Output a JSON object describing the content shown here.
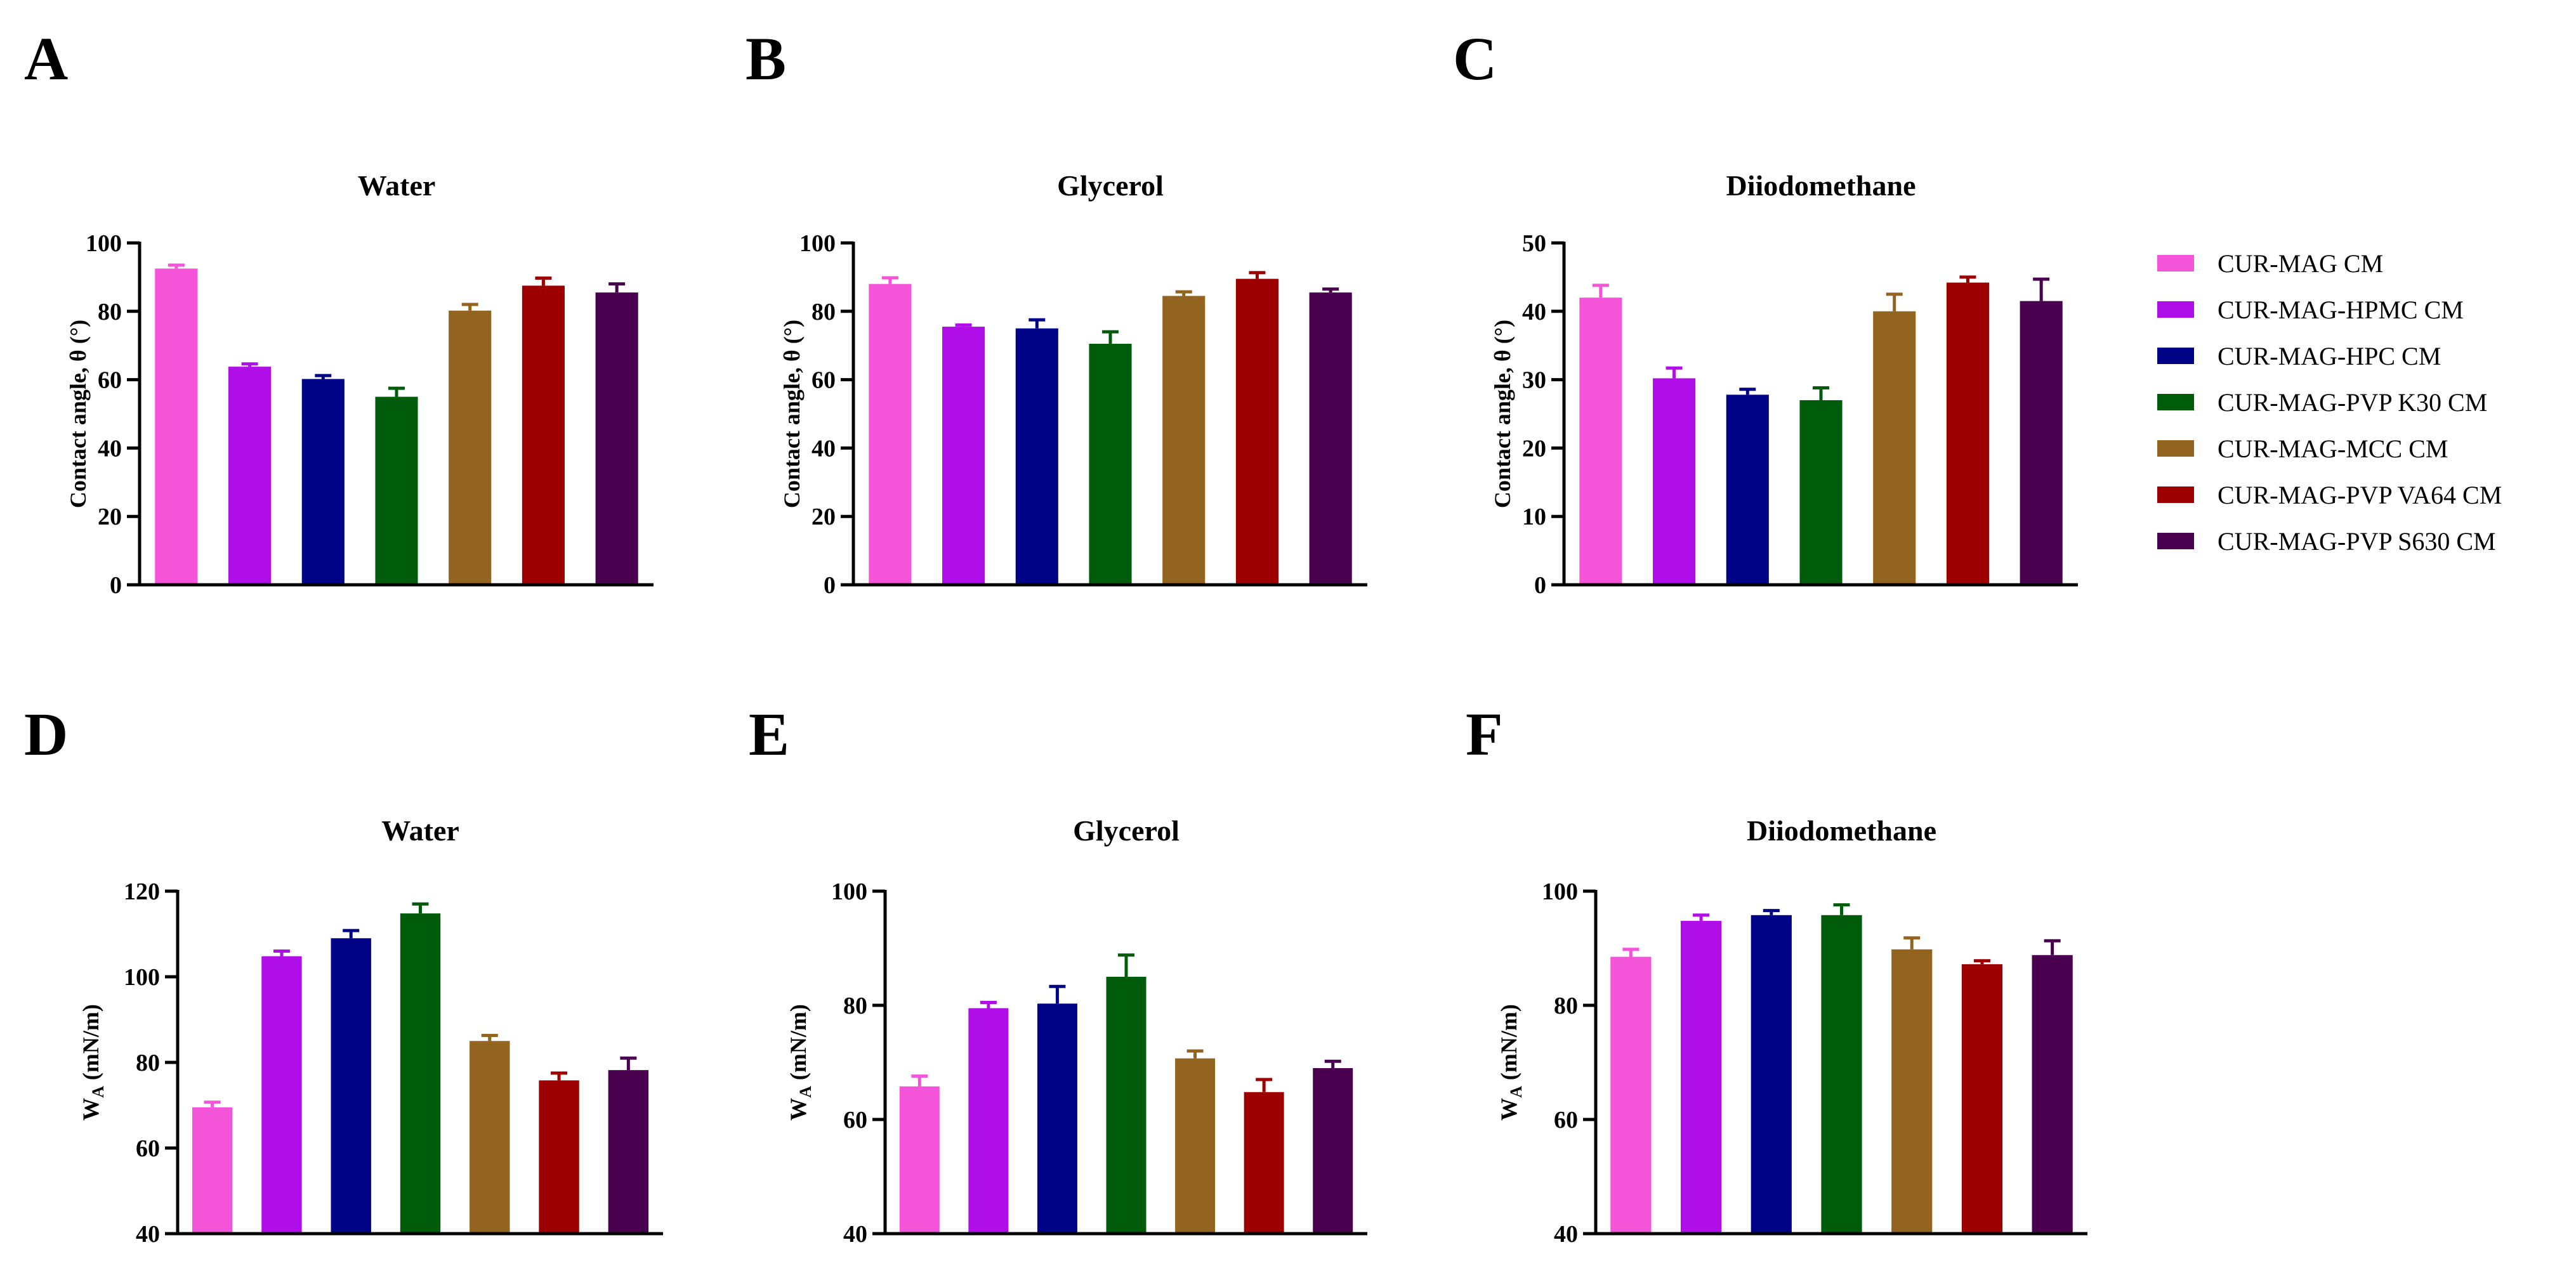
{
  "legend": {
    "items": [
      {
        "label": "CUR-MAG CM",
        "color": "#f454d8"
      },
      {
        "label": "CUR-MAG-HPMC CM",
        "color": "#b00ee8"
      },
      {
        "label": "CUR-MAG-HPC CM",
        "color": "#000385"
      },
      {
        "label": "CUR-MAG-PVP K30 CM",
        "color": "#005c0a"
      },
      {
        "label": "CUR-MAG-MCC CM",
        "color": "#936320"
      },
      {
        "label": "CUR-MAG-PVP VA64 CM",
        "color": "#9c0000"
      },
      {
        "label": "CUR-MAG-PVP S630 CM",
        "color": "#48004f"
      }
    ]
  },
  "chart_data": [
    {
      "panel": "A",
      "type": "bar",
      "title": "Water",
      "ylabel": "Contact angle, θ (°)",
      "ylim": [
        0,
        100
      ],
      "yticks": [
        "0",
        "20",
        "40",
        "60",
        "80",
        "100"
      ],
      "values": [
        92.5,
        63.8,
        60.2,
        55.0,
        80.2,
        87.5,
        85.5
      ],
      "errors": [
        1.0,
        0.8,
        1.0,
        2.5,
        1.8,
        2.2,
        2.5
      ]
    },
    {
      "panel": "B",
      "type": "bar",
      "title": "Glycerol",
      "ylabel": "Contact angle, θ (°)",
      "ylim": [
        0,
        100
      ],
      "yticks": [
        "0",
        "20",
        "40",
        "60",
        "80",
        "100"
      ],
      "values": [
        88.0,
        75.5,
        75.0,
        70.5,
        84.5,
        89.5,
        85.5
      ],
      "errors": [
        1.8,
        0.5,
        2.5,
        3.5,
        1.2,
        1.8,
        1.0
      ]
    },
    {
      "panel": "C",
      "type": "bar",
      "title": "Diiodomethane",
      "ylabel": "Contact angle, θ (°)",
      "ylim": [
        0,
        50
      ],
      "yticks": [
        "0",
        "10",
        "20",
        "30",
        "40",
        "50"
      ],
      "values": [
        42.0,
        30.2,
        27.8,
        27.0,
        40.0,
        44.2,
        41.5
      ],
      "errors": [
        1.8,
        1.5,
        0.8,
        1.8,
        2.5,
        0.8,
        3.2
      ]
    },
    {
      "panel": "D",
      "type": "bar",
      "title": "Water",
      "ylabel": "W",
      "ylabel_sub": "A",
      "ylabel_rest": " (mN/m)",
      "ylim": [
        40,
        120
      ],
      "yticks": [
        "40",
        "60",
        "80",
        "100",
        "120"
      ],
      "values": [
        69.5,
        104.8,
        109.0,
        114.8,
        85.0,
        75.8,
        78.2
      ],
      "errors": [
        1.2,
        1.2,
        1.8,
        2.2,
        1.3,
        1.7,
        2.8
      ]
    },
    {
      "panel": "E",
      "type": "bar",
      "title": "Glycerol",
      "ylabel": "W",
      "ylabel_sub": "A",
      "ylabel_rest": " (mN/m)",
      "ylim": [
        40,
        100
      ],
      "yticks": [
        "40",
        "60",
        "80",
        "100"
      ],
      "values": [
        65.8,
        79.5,
        80.3,
        85.0,
        70.7,
        64.8,
        69.0
      ],
      "errors": [
        1.8,
        1.0,
        3.0,
        3.8,
        1.3,
        2.2,
        1.2
      ]
    },
    {
      "panel": "F",
      "type": "bar",
      "title": "Diiodomethane",
      "ylabel": "W",
      "ylabel_sub": "A",
      "ylabel_rest": " (mN/m)",
      "ylim": [
        40,
        100
      ],
      "yticks": [
        "40",
        "60",
        "80",
        "100"
      ],
      "values": [
        88.5,
        94.8,
        95.8,
        95.8,
        89.8,
        87.2,
        88.8
      ],
      "errors": [
        1.3,
        1.0,
        0.8,
        1.8,
        2.0,
        0.6,
        2.5
      ]
    }
  ]
}
